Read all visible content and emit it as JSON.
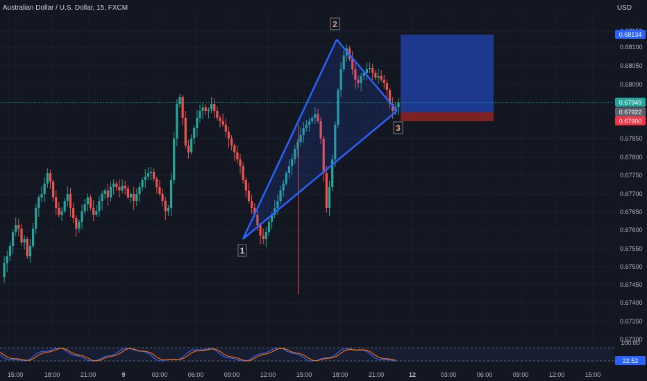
{
  "header": {
    "title": "Australian Dollar / U.S. Dollar, 15, FXCM",
    "currency": "USD"
  },
  "colors": {
    "background": "#131722",
    "up": "#26a69a",
    "down": "#ef5350",
    "pattern": "#2962ff",
    "target_zone": "#1e3a8a",
    "stop_zone": "#7f1d1d"
  },
  "price_axis": {
    "ticks": [
      "0.68150",
      "0.68100",
      "0.68050",
      "0.68000",
      "0.67950",
      "0.67850",
      "0.67800",
      "0.67750",
      "0.67700",
      "0.67650",
      "0.67600",
      "0.67550",
      "0.67500",
      "0.67450",
      "0.67400",
      "0.67350",
      "0.67300"
    ],
    "badges": {
      "target": "0.68134",
      "current": "0.67949",
      "prev": "0.67922",
      "stop": "0.67900",
      "osc": "22.52"
    },
    "osc_top": "100.00"
  },
  "time_axis": {
    "labels": [
      "15:00",
      "18:00",
      "21:00",
      "9",
      "03:00",
      "06:00",
      "09:00",
      "12:00",
      "15:00",
      "18:00",
      "21:00",
      "12",
      "03:00",
      "06:00",
      "09:00",
      "12:00",
      "15:00"
    ]
  },
  "pattern_markers": [
    "1",
    "2",
    "3"
  ],
  "chart_data": {
    "type": "candlestick",
    "symbol": "Australian Dollar / U.S. Dollar",
    "interval": "15",
    "source": "FXCM",
    "ylim": [
      0.6728,
      0.6818
    ],
    "pattern_points": [
      {
        "label": "1",
        "price": 0.6756
      },
      {
        "label": "2",
        "price": 0.6813
      },
      {
        "label": "3",
        "price": 0.6792
      }
    ],
    "target_price": 0.68134,
    "current_price": 0.67949,
    "stop_price": 0.679,
    "stochastic_value": 22.52
  }
}
